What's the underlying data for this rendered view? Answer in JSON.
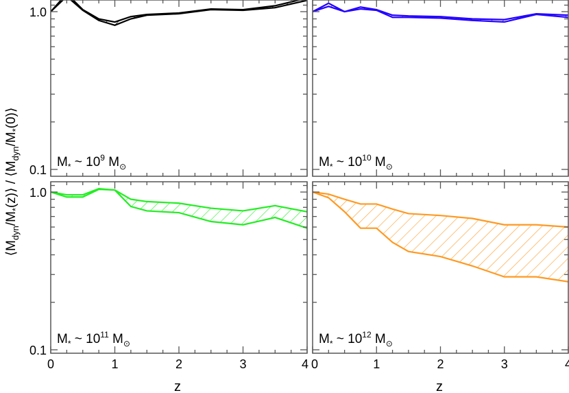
{
  "chart_data": [
    {
      "type": "area",
      "panel": "top-left",
      "annotation": {
        "base": "M",
        "sub1": "*",
        "mid": " ~ 10",
        "exp": "9",
        "unit": " M",
        "sun": "⊙"
      },
      "color": "#000000",
      "x": [
        0,
        0.25,
        0.5,
        0.75,
        1,
        1.25,
        1.5,
        2,
        2.5,
        3,
        3.5,
        4
      ],
      "upper": [
        1.0,
        1.3,
        1.03,
        0.9,
        0.86,
        0.93,
        0.96,
        0.98,
        1.04,
        1.03,
        1.09,
        1.22
      ],
      "lower": [
        1.0,
        1.25,
        1.02,
        0.88,
        0.82,
        0.9,
        0.95,
        0.97,
        1.03,
        1.02,
        1.06,
        1.18
      ]
    },
    {
      "type": "area",
      "panel": "top-right",
      "annotation": {
        "base": "M",
        "sub1": "*",
        "mid": " ~ 10",
        "exp": "10",
        "unit": " M",
        "sun": "⊙"
      },
      "color": "#2200ff",
      "x": [
        0,
        0.25,
        0.5,
        0.75,
        1,
        1.25,
        1.5,
        2,
        2.5,
        3,
        3.5,
        4
      ],
      "upper": [
        1.0,
        1.13,
        1.0,
        1.07,
        1.03,
        0.95,
        0.94,
        0.93,
        0.9,
        0.89,
        0.97,
        0.95
      ],
      "lower": [
        1.0,
        1.08,
        1.0,
        1.04,
        1.02,
        0.92,
        0.92,
        0.91,
        0.88,
        0.86,
        0.96,
        0.92
      ]
    },
    {
      "type": "area",
      "panel": "bottom-left",
      "annotation": {
        "base": "M",
        "sub1": "*",
        "mid": " ~ 10",
        "exp": "11",
        "unit": " M",
        "sun": "⊙"
      },
      "color": "#22ee22",
      "x": [
        0,
        0.25,
        0.5,
        0.75,
        1,
        1.25,
        1.5,
        2,
        2.5,
        3,
        3.5,
        4
      ],
      "upper": [
        1.0,
        0.96,
        0.96,
        1.05,
        1.03,
        0.9,
        0.87,
        0.85,
        0.79,
        0.76,
        0.82,
        0.75
      ],
      "lower": [
        1.0,
        0.93,
        0.93,
        1.04,
        1.03,
        0.81,
        0.76,
        0.74,
        0.65,
        0.62,
        0.69,
        0.59
      ]
    },
    {
      "type": "area",
      "panel": "bottom-right",
      "annotation": {
        "base": "M",
        "sub1": "*",
        "mid": " ~ 10",
        "exp": "12",
        "unit": " M",
        "sun": "⊙"
      },
      "color": "#ff9922",
      "x": [
        0,
        0.25,
        0.5,
        0.75,
        1,
        1.25,
        1.5,
        2,
        2.5,
        3,
        3.5,
        4
      ],
      "upper": [
        1.0,
        0.97,
        0.9,
        0.84,
        0.84,
        0.78,
        0.73,
        0.71,
        0.68,
        0.62,
        0.62,
        0.6
      ],
      "lower": [
        1.0,
        0.92,
        0.75,
        0.59,
        0.59,
        0.48,
        0.42,
        0.39,
        0.34,
        0.29,
        0.29,
        0.27
      ]
    }
  ],
  "axes": {
    "xlabel": "z",
    "ylabel": "⟨M_dyn/M_*(z)⟩ / ⟨M_dyn/M_*(0)⟩",
    "ylabel_parts": [
      "⟨M",
      "dyn",
      "/M",
      "*",
      "(z)⟩ / ⟨M",
      "dyn",
      "/M",
      "*",
      "(0)⟩"
    ],
    "xlim": [
      0,
      4
    ],
    "ylim": [
      0.1,
      1.2
    ],
    "yscale": "log",
    "xticks": [
      "0",
      "1",
      "2",
      "3",
      "4"
    ],
    "xticks_right_first": "0",
    "yticks": [
      "1.0",
      "0.1"
    ]
  }
}
